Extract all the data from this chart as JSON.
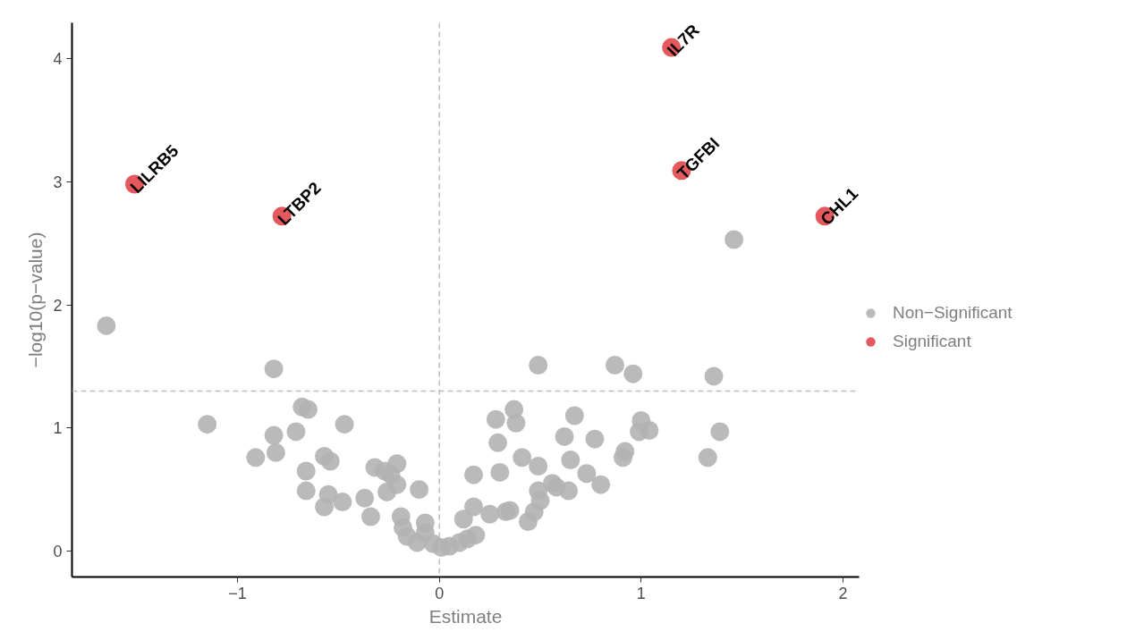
{
  "chart_data": {
    "type": "scatter",
    "xlabel": "Estimate",
    "ylabel": "−log10(p−value)",
    "xlim": [
      -1.82,
      2.08
    ],
    "ylim": [
      -0.21,
      4.29
    ],
    "xticks": [
      {
        "value": -1,
        "label": "−1"
      },
      0,
      1,
      2
    ],
    "yticks": [
      0,
      1,
      2,
      3,
      4
    ],
    "grid": false,
    "legend": "right",
    "marker": "circle",
    "series": [
      {
        "name": "Non−Significant",
        "color": "#b3b3b3",
        "x": [
          -1.65,
          -1.15,
          -0.82,
          -0.91,
          -0.82,
          -0.81,
          -0.71,
          -0.68,
          -0.65,
          -0.66,
          -0.66,
          -0.57,
          -0.54,
          -0.55,
          -0.57,
          -0.48,
          -0.47,
          -0.37,
          -0.34,
          -0.32,
          -0.27,
          -0.26,
          -0.21,
          -0.24,
          -0.21,
          -0.1,
          -0.19,
          -0.18,
          -0.16,
          -0.11,
          -0.07,
          -0.07,
          -0.03,
          0.01,
          0.05,
          0.1,
          0.14,
          0.18,
          0.12,
          0.17,
          0.17,
          0.28,
          0.29,
          0.3,
          0.37,
          0.38,
          0.25,
          0.33,
          0.35,
          0.41,
          0.49,
          0.49,
          0.44,
          0.47,
          0.5,
          0.49,
          0.56,
          0.58,
          0.62,
          0.64,
          0.65,
          0.67,
          0.73,
          0.77,
          0.8,
          0.87,
          0.96,
          0.91,
          0.92,
          0.99,
          1.0,
          1.04,
          1.46,
          1.36,
          1.39,
          1.33
        ],
        "values": [
          1.83,
          1.03,
          1.48,
          0.76,
          0.94,
          0.8,
          0.97,
          1.17,
          1.15,
          0.65,
          0.49,
          0.77,
          0.73,
          0.46,
          0.36,
          0.4,
          1.03,
          0.43,
          0.28,
          0.68,
          0.65,
          0.48,
          0.71,
          0.62,
          0.54,
          0.5,
          0.28,
          0.19,
          0.12,
          0.07,
          0.23,
          0.15,
          0.06,
          0.03,
          0.04,
          0.07,
          0.1,
          0.13,
          0.26,
          0.36,
          0.62,
          1.07,
          0.88,
          0.64,
          1.15,
          1.04,
          0.3,
          0.32,
          0.33,
          0.76,
          0.69,
          1.51,
          0.24,
          0.32,
          0.41,
          0.49,
          0.55,
          0.52,
          0.93,
          0.49,
          0.74,
          1.1,
          0.63,
          0.91,
          0.54,
          1.51,
          1.44,
          0.76,
          0.81,
          0.97,
          1.06,
          0.98,
          2.53,
          1.42,
          0.97,
          0.76
        ]
      },
      {
        "name": "Significant",
        "color": "#e0474c",
        "x": [
          -1.51,
          -0.78,
          1.15,
          1.2,
          1.91
        ],
        "values": [
          2.98,
          2.72,
          4.09,
          3.09,
          2.72
        ]
      }
    ],
    "ref_lines": [
      {
        "axis": "y",
        "value": 1.3,
        "color": "#bebebe",
        "line_style": "dashed"
      },
      {
        "axis": "x",
        "value": 0,
        "color": "#bebebe",
        "line_style": "dashed"
      }
    ],
    "annotations": [
      {
        "text": "LILRB5",
        "x": -1.51,
        "y": 2.98
      },
      {
        "text": "LTBP2",
        "x": -0.78,
        "y": 2.72
      },
      {
        "text": "IL7R",
        "x": 1.15,
        "y": 4.09
      },
      {
        "text": "TGFBI",
        "x": 1.2,
        "y": 3.09
      },
      {
        "text": "CHL1",
        "x": 1.91,
        "y": 2.72
      }
    ]
  }
}
